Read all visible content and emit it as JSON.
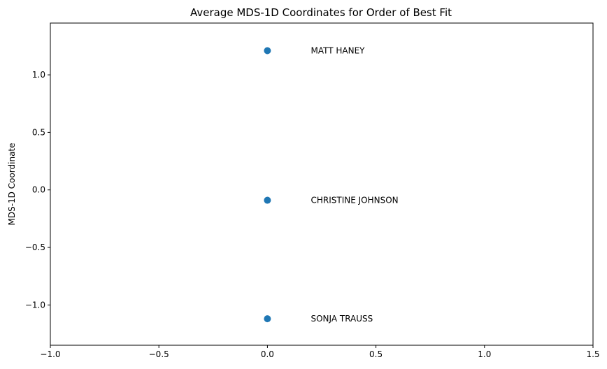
{
  "chart_data": {
    "type": "scatter",
    "title": "Average MDS-1D Coordinates for Order of Best Fit",
    "xlabel": "",
    "ylabel": "MDS-1D Coordinate",
    "xlim": [
      -1.0,
      1.5
    ],
    "ylim": [
      -1.35,
      1.45
    ],
    "x_ticks": [
      -1.0,
      -0.5,
      0.0,
      0.5,
      1.0,
      1.5
    ],
    "x_tick_labels": [
      "−1.0",
      "−0.5",
      "0.0",
      "0.5",
      "1.0",
      "1.5"
    ],
    "y_ticks": [
      -1.0,
      -0.5,
      0.0,
      0.5,
      1.0
    ],
    "y_tick_labels": [
      "−1.0",
      "−0.5",
      "0.0",
      "0.5",
      "1.0"
    ],
    "grid": false,
    "legend": "none",
    "marker_color": "#1f77b4",
    "points": [
      {
        "x": 0.0,
        "y": 1.21,
        "label": "MATT HANEY",
        "label_x": 0.2
      },
      {
        "x": 0.0,
        "y": -0.09,
        "label": "CHRISTINE JOHNSON",
        "label_x": 0.2
      },
      {
        "x": 0.0,
        "y": -1.12,
        "label": "SONJA TRAUSS",
        "label_x": 0.2
      }
    ]
  }
}
